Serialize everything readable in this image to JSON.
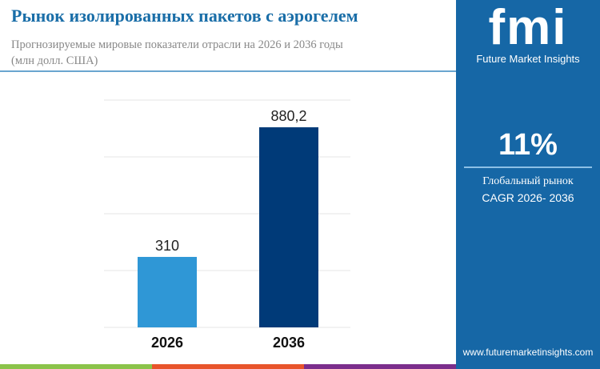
{
  "header": {
    "title": "Рынок изолированных пакетов с аэрогелем",
    "subtitle": "Прогнозируемые мировые показатели отрасли на 2026 и 2036 годы",
    "unit": "(млн долл. США)"
  },
  "sidebar": {
    "logo_text": "fmi",
    "logo_caption": "Future Market Insights",
    "cagr_value": "11%",
    "cagr_label1": "Глобальный рынок",
    "cagr_label2": "CAGR 2026- 2036",
    "website": "www.futuremarketinsights.com"
  },
  "colors": {
    "accent": "#1a6ea8",
    "sidebar": "#1667a6",
    "bar_2026": "#2f97d6",
    "bar_2036": "#003a78",
    "strip": [
      "#8bc34a",
      "#e8542b",
      "#7b2e8c"
    ]
  },
  "chart_data": {
    "type": "bar",
    "categories": [
      "2026",
      "2036"
    ],
    "values": [
      310,
      880.2
    ],
    "data_labels": [
      "310",
      "880,2"
    ],
    "ylim": [
      0,
      1000
    ],
    "grid": true,
    "title": "",
    "xlabel": "",
    "ylabel": ""
  }
}
